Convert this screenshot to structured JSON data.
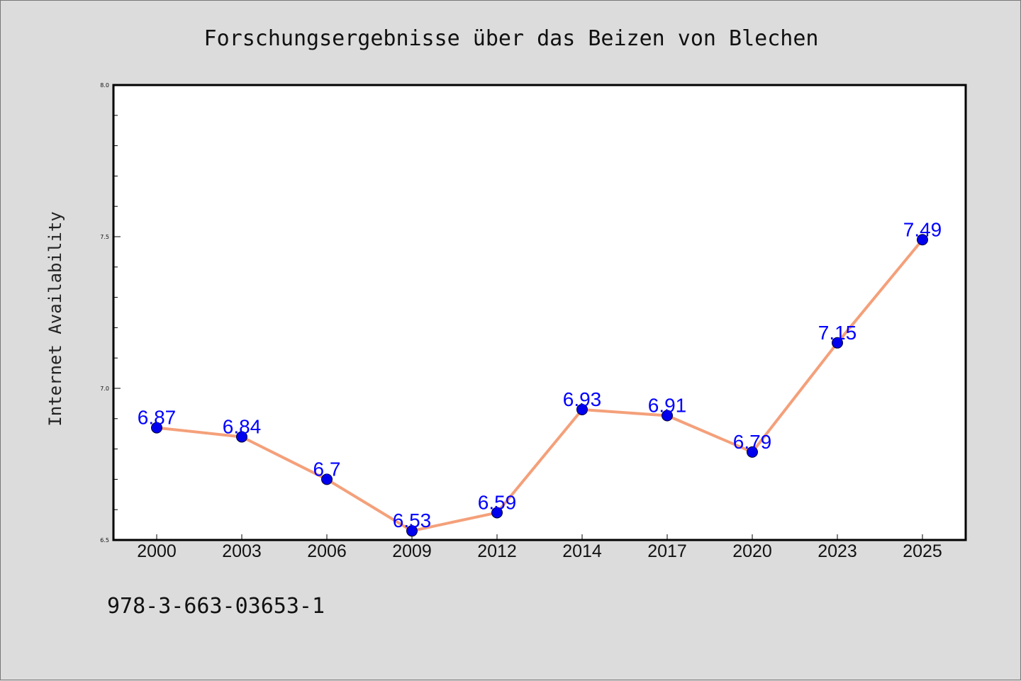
{
  "chart_data": {
    "type": "line",
    "title": "Forschungsergebnisse über das Beizen von Blechen",
    "xlabel": "",
    "ylabel": "Internet Availability",
    "categories": [
      "2000",
      "2003",
      "2006",
      "2009",
      "2012",
      "2014",
      "2017",
      "2020",
      "2023",
      "2025"
    ],
    "series": [
      {
        "values": [
          6.87,
          6.84,
          6.7,
          6.53,
          6.59,
          6.93,
          6.91,
          6.79,
          7.15,
          7.49
        ],
        "data_labels": [
          "6.87",
          "6.84",
          "6.7",
          "6.53",
          "6.59",
          "6.93",
          "6.91",
          "6.79",
          "7.15",
          "7.49"
        ],
        "line_color": "#f4a07a",
        "marker_color": "#0000ee",
        "label_color": "#0000ff"
      }
    ],
    "ylim": [
      6.5,
      8.0
    ],
    "y_ticks": [
      "6.5",
      "7.0",
      "7.5",
      "8.0"
    ],
    "grid": false,
    "legend": "none"
  },
  "footer": {
    "code": "978-3-663-03653-1"
  },
  "colors": {
    "background": "#dcdcdc",
    "plot_background": "#ffffff",
    "axis": "#000000"
  }
}
